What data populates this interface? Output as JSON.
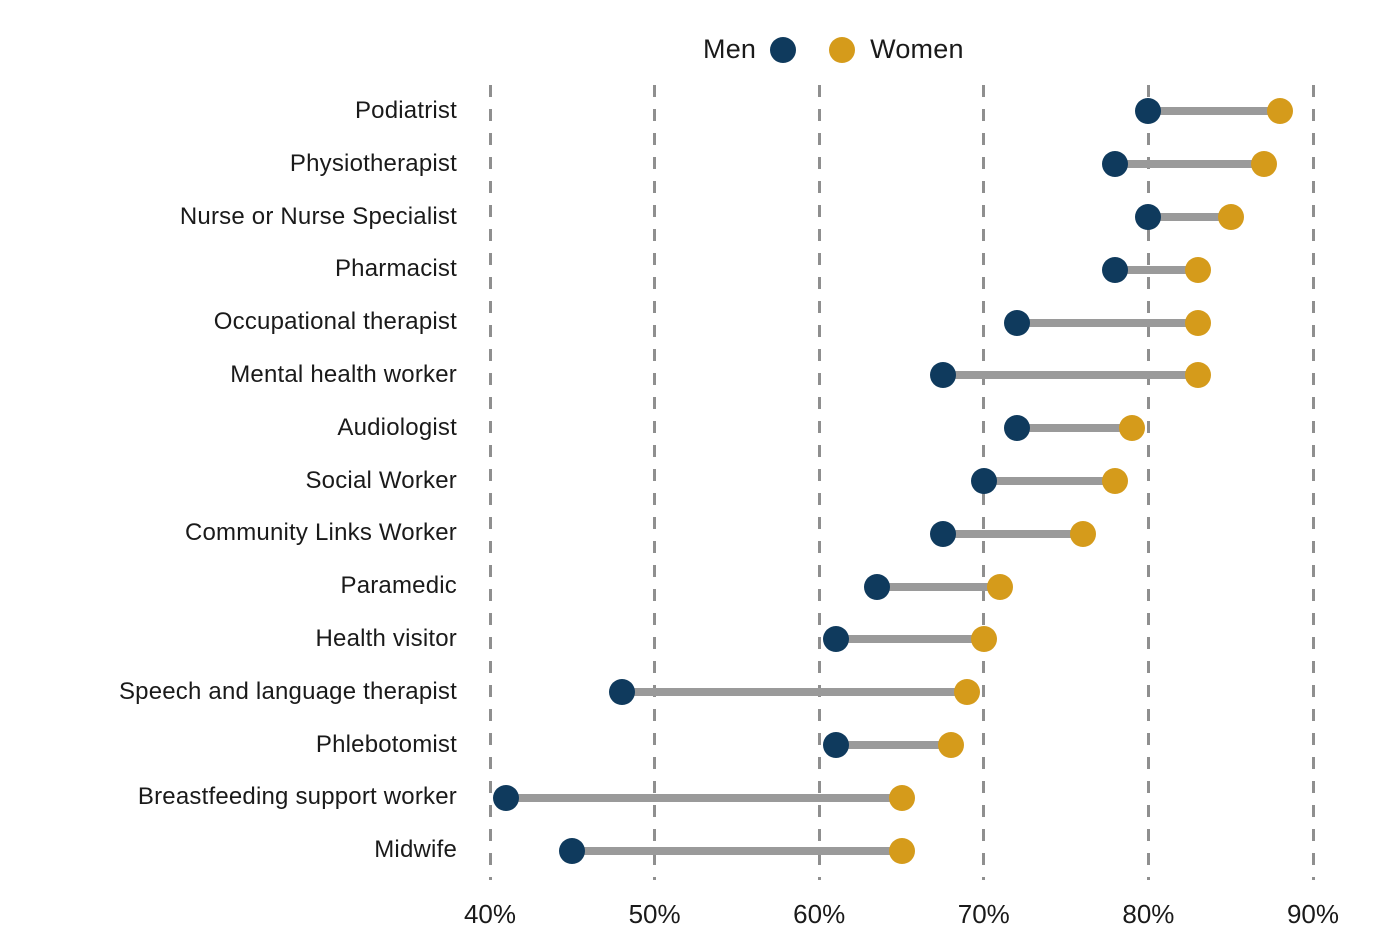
{
  "legend": {
    "men_label": "Men",
    "women_label": "Women"
  },
  "colors": {
    "men": "#0f3a5d",
    "women": "#d59b1b",
    "connector": "#9a9a9a",
    "gridline": "#8f8f8f",
    "text": "#1a1a1a",
    "background": "#ffffff"
  },
  "chart_data": {
    "type": "scatter",
    "variant": "dumbbell",
    "orientation": "horizontal",
    "title": "",
    "xlabel": "",
    "ylabel": "",
    "grid": "vertical-dashed",
    "legend_position": "top",
    "categories": [
      "Podiatrist",
      "Physiotherapist",
      "Nurse or Nurse Specialist",
      "Pharmacist",
      "Occupational therapist",
      "Mental health worker",
      "Audiologist",
      "Social Worker",
      "Community Links Worker",
      "Paramedic",
      "Health visitor",
      "Speech and language therapist",
      "Phlebotomist",
      "Breastfeeding support worker",
      "Midwife"
    ],
    "series": [
      {
        "name": "Men",
        "color": "#0f3a5d",
        "values": [
          80,
          78,
          80,
          78,
          72,
          67.5,
          72,
          70,
          67.5,
          63.5,
          61,
          48,
          61,
          41,
          45
        ]
      },
      {
        "name": "Women",
        "color": "#d59b1b",
        "values": [
          88,
          87,
          85,
          83,
          83,
          83,
          79,
          78,
          76,
          71,
          70,
          69,
          68,
          65,
          65
        ]
      }
    ],
    "x_axis": {
      "min": 40,
      "max": 90,
      "unit": "%",
      "ticks": [
        40,
        50,
        60,
        70,
        80,
        90
      ],
      "tick_labels": [
        "40%",
        "50%",
        "60%",
        "70%",
        "80%",
        "90%"
      ]
    }
  }
}
